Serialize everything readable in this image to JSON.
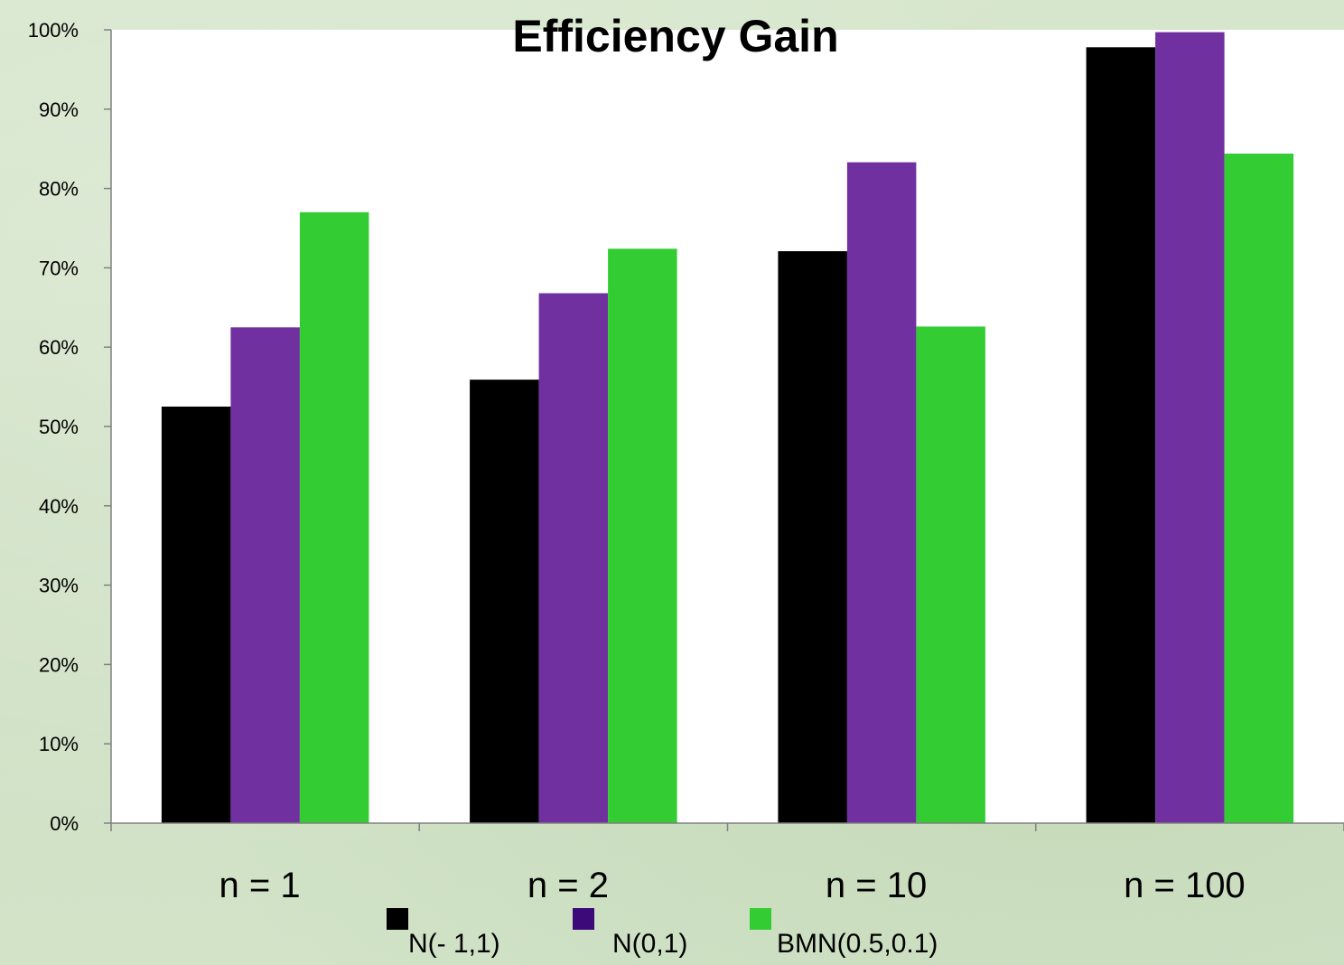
{
  "chart_data": {
    "type": "bar",
    "title": "Efficiency Gain",
    "xlabel": "",
    "ylabel": "",
    "categories": [
      "n = 1",
      "n = 2",
      "n = 10",
      "n = 100"
    ],
    "series": [
      {
        "name": "N(-  1,1)",
        "color": "#000000",
        "values": [
          52.5,
          55.9,
          72.1,
          97.8
        ]
      },
      {
        "name": "N(0,1)",
        "color": "#7030a0",
        "values": [
          62.5,
          66.8,
          83.3,
          99.7
        ]
      },
      {
        "name": "BMN(0.5,0.1)",
        "color": "#33cc33",
        "values": [
          77.0,
          72.4,
          62.6,
          84.4
        ]
      }
    ],
    "ylim": [
      0,
      100
    ],
    "yticks": [
      "0%",
      "10%",
      "20%",
      "30%",
      "40%",
      "50%",
      "60%",
      "70%",
      "80%",
      "90%",
      "100%"
    ],
    "grid": false,
    "legend": "bottom"
  }
}
